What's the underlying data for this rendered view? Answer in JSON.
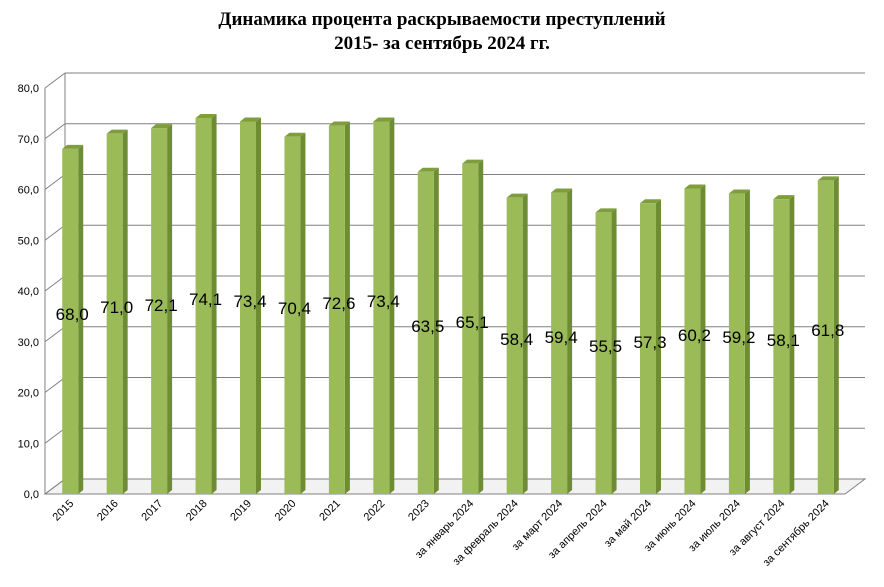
{
  "chart_data": {
    "type": "bar",
    "title": "Динамика процента раскрываемости преступлений",
    "subtitle": "2015- за сентябрь 2024 гг.",
    "categories": [
      "2015",
      "2016",
      "2017",
      "2018",
      "2019",
      "2020",
      "2021",
      "2022",
      "2023",
      "за январь 2024",
      "за февраль 2024",
      "за март 2024",
      "за апрель 2024",
      "за май 2024",
      "за июнь 2024",
      "за июль 2024",
      "за август 2024",
      "за сентябрь 2024"
    ],
    "values": [
      68.0,
      71.0,
      72.1,
      74.1,
      73.4,
      70.4,
      72.6,
      73.4,
      63.5,
      65.1,
      58.4,
      59.4,
      55.5,
      57.3,
      60.2,
      59.2,
      58.1,
      61.8
    ],
    "value_labels": [
      "68,0",
      "71,0",
      "72,1",
      "74,1",
      "73,4",
      "70,4",
      "72,6",
      "73,4",
      "63,5",
      "65,1",
      "58,4",
      "59,4",
      "55,5",
      "57,3",
      "60,2",
      "59,2",
      "58,1",
      "61,8"
    ],
    "ylim": [
      0,
      80
    ],
    "yticks": [
      "0,0",
      "10,0",
      "20,0",
      "30,0",
      "40,0",
      "50,0",
      "60,0",
      "70,0",
      "80,0"
    ],
    "xlabel": "",
    "ylabel": "",
    "grid": true,
    "style": "3d-column",
    "colors": {
      "bar_front": "#9bbb59",
      "bar_side": "#6e8c33",
      "bar_top": "#7e9e3e",
      "grid": "#808080",
      "axis": "#808080"
    }
  }
}
